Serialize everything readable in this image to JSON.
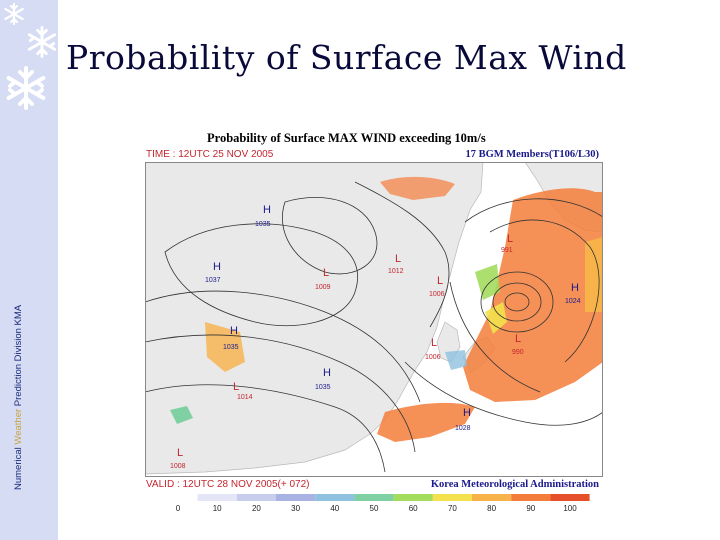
{
  "sidebar": {
    "vertical_text_part1": "Numerical ",
    "vertical_text_highlight": "Weather",
    "vertical_text_part2": " Prediction Division  KMA",
    "colors": {
      "background": "#d5dcf3",
      "text": "#1b2a7a",
      "highlight": "#c9a23a"
    },
    "icons": [
      "snowflake-icon",
      "snowflake-icon",
      "snowflake-icon"
    ]
  },
  "slide": {
    "title": "Probability of Surface Max Wind"
  },
  "figure": {
    "title": "Probability of Surface MAX WIND exceeding 10m/s",
    "time_label": "TIME : 12UTC 25 NOV 2005",
    "members_label": "17 BGM Members(T106/L30)",
    "valid_label": "VALID : 12UTC 28 NOV 2005(+ 072)",
    "agency_label": "Korea Meteorological Administration",
    "colors": {
      "label_red": "#c4262e",
      "label_blue": "#1a1a8c",
      "isobar": "#333333",
      "land": "#e9e9e9",
      "sea": "#ffffff"
    },
    "pressure_systems": [
      {
        "type": "H",
        "value": "1035"
      },
      {
        "type": "H",
        "value": "1037"
      },
      {
        "type": "H",
        "value": "1035"
      },
      {
        "type": "H",
        "value": "1035"
      },
      {
        "type": "H",
        "value": "1024"
      },
      {
        "type": "H",
        "value": "1028"
      },
      {
        "type": "L",
        "value": "1009"
      },
      {
        "type": "L",
        "value": "1012"
      },
      {
        "type": "L",
        "value": "1006"
      },
      {
        "type": "L",
        "value": "991"
      },
      {
        "type": "L",
        "value": "1006"
      },
      {
        "type": "L",
        "value": "990"
      },
      {
        "type": "L",
        "value": "1014"
      },
      {
        "type": "L",
        "value": "1008"
      }
    ],
    "colorbar": {
      "ticks": [
        "0",
        "10",
        "20",
        "30",
        "40",
        "50",
        "60",
        "70",
        "80",
        "90",
        "100"
      ],
      "colors": [
        "#ffffff",
        "#e4e6f7",
        "#c8cdee",
        "#a9b3e3",
        "#8fc2e0",
        "#7fd1a3",
        "#a4dc5e",
        "#f3e24d",
        "#f7b24a",
        "#f37c3a",
        "#e54f2a"
      ]
    }
  }
}
